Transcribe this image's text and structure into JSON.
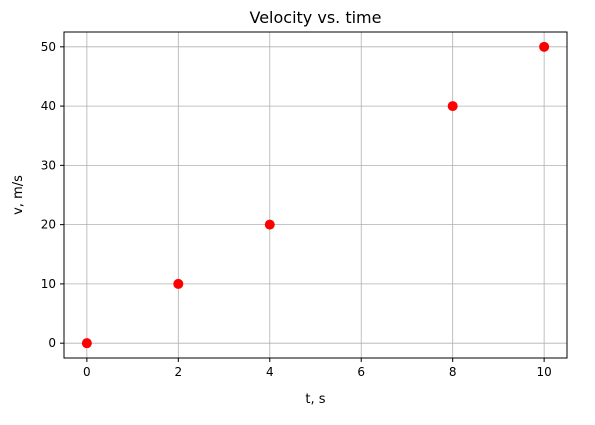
{
  "chart_data": {
    "type": "scatter",
    "title": "Velocity vs. time",
    "xlabel": "t, s",
    "ylabel": "v, m/s",
    "xlim": [
      -0.5,
      10.5
    ],
    "ylim": [
      -2.5,
      52.5
    ],
    "xticks": [
      0,
      2,
      4,
      6,
      8,
      10
    ],
    "yticks": [
      0,
      10,
      20,
      30,
      40,
      50
    ],
    "grid": true,
    "marker_color": "#ff0000",
    "x": [
      0,
      2,
      4,
      8,
      10
    ],
    "y": [
      0,
      10,
      20,
      40,
      50
    ]
  }
}
